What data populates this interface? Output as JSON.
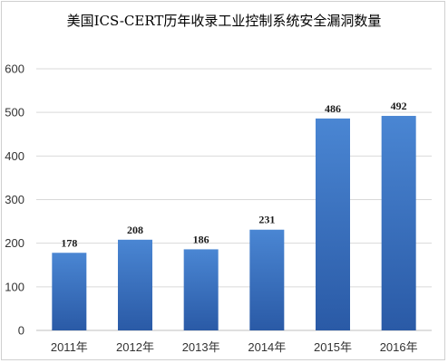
{
  "chart_data": {
    "type": "bar",
    "title": "美国ICS-CERT历年收录工业控制系统安全漏洞数量",
    "categories": [
      "2011年",
      "2012年",
      "2013年",
      "2014年",
      "2015年",
      "2016年"
    ],
    "values": [
      178,
      208,
      186,
      231,
      486,
      492
    ],
    "data_labels": [
      "178",
      "208",
      "186",
      "231",
      "486",
      "492"
    ],
    "ylim": [
      0,
      600
    ],
    "yticks": [
      0,
      100,
      200,
      300,
      400,
      500,
      600
    ],
    "ytick_labels": [
      "0",
      "100",
      "200",
      "300",
      "400",
      "500",
      "600"
    ],
    "xlabel": "",
    "ylabel": "",
    "grid": true,
    "legend": "none",
    "colors": {
      "bar_top": "#4a86d3",
      "bar_bottom": "#2a5aa6",
      "grid": "#d9d9d9",
      "axis": "#bfbfbf"
    }
  }
}
